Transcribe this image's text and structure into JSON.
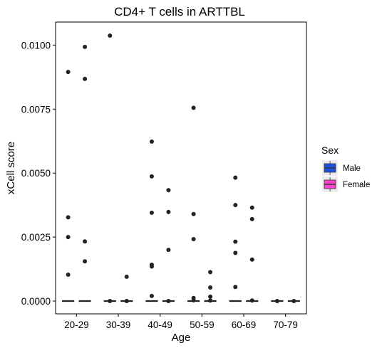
{
  "chart_data": {
    "type": "boxplot",
    "title": "CD4+ T cells in ARTTBL",
    "xlabel": "Age",
    "ylabel": "xCell score",
    "categories": [
      "20-29",
      "30-39",
      "40-49",
      "50-59",
      "60-69",
      "70-79"
    ],
    "ylim": [
      -0.0005,
      0.0109
    ],
    "yticks": [
      0.0,
      0.0025,
      0.005,
      0.0075,
      0.01
    ],
    "ytick_labels": [
      "0.0000",
      "0.0025",
      "0.0050",
      "0.0075",
      "0.0100"
    ],
    "grid": false,
    "legend": {
      "title": "Sex",
      "position": "right",
      "entries": [
        {
          "label": "Male",
          "color": "#1f4fe0"
        },
        {
          "label": "Female",
          "color": "#ff44cc"
        }
      ]
    },
    "series": [
      {
        "name": "Male",
        "boxes": [
          {
            "category": "20-29",
            "median": 0.0,
            "q1": 0.0,
            "q3": 0.0
          },
          {
            "category": "30-39",
            "median": 0.0,
            "q1": 0.0,
            "q3": 0.0
          },
          {
            "category": "40-49",
            "median": 0.0,
            "q1": 0.0,
            "q3": 0.0
          },
          {
            "category": "50-59",
            "median": 0.0,
            "q1": 0.0,
            "q3": 0.0
          },
          {
            "category": "60-69",
            "median": 0.0,
            "q1": 0.0,
            "q3": 0.0
          },
          {
            "category": "70-79",
            "median": 0.0,
            "q1": 0.0,
            "q3": 0.0
          }
        ],
        "points": [
          {
            "category": "20-29",
            "y": 0.00895
          },
          {
            "category": "20-29",
            "y": 0.00327
          },
          {
            "category": "20-29",
            "y": 0.0025
          },
          {
            "category": "20-29",
            "y": 0.00103
          },
          {
            "category": "30-39",
            "y": 0.01037
          },
          {
            "category": "30-39",
            "y": 0.0
          },
          {
            "category": "40-49",
            "y": 0.00623
          },
          {
            "category": "40-49",
            "y": 0.00487
          },
          {
            "category": "40-49",
            "y": 0.00345
          },
          {
            "category": "40-49",
            "y": 0.00142
          },
          {
            "category": "40-49",
            "y": 0.00135
          },
          {
            "category": "40-49",
            "y": 0.0002
          },
          {
            "category": "50-59",
            "y": 0.00755
          },
          {
            "category": "50-59",
            "y": 0.0034
          },
          {
            "category": "50-59",
            "y": 0.00242
          },
          {
            "category": "50-59",
            "y": 0.00012
          },
          {
            "category": "50-59",
            "y": 3e-05
          },
          {
            "category": "60-69",
            "y": 0.00482
          },
          {
            "category": "60-69",
            "y": 0.00375
          },
          {
            "category": "60-69",
            "y": 0.00232
          },
          {
            "category": "60-69",
            "y": 0.00188
          },
          {
            "category": "60-69",
            "y": 0.00055
          },
          {
            "category": "70-79",
            "y": 0.0
          }
        ]
      },
      {
        "name": "Female",
        "boxes": [
          {
            "category": "20-29",
            "median": 0.0,
            "q1": 0.0,
            "q3": 0.0
          },
          {
            "category": "30-39",
            "median": 0.0,
            "q1": 0.0,
            "q3": 0.0
          },
          {
            "category": "40-49",
            "median": 0.0,
            "q1": 0.0,
            "q3": 0.0
          },
          {
            "category": "50-59",
            "median": 0.0,
            "q1": 0.0,
            "q3": 0.0
          },
          {
            "category": "60-69",
            "median": 0.0,
            "q1": 0.0,
            "q3": 0.0
          },
          {
            "category": "70-79",
            "median": 0.0,
            "q1": 0.0,
            "q3": 0.0
          }
        ],
        "points": [
          {
            "category": "20-29",
            "y": 0.00993
          },
          {
            "category": "20-29",
            "y": 0.00868
          },
          {
            "category": "20-29",
            "y": 0.00233
          },
          {
            "category": "20-29",
            "y": 0.00155
          },
          {
            "category": "30-39",
            "y": 0.00095
          },
          {
            "category": "30-39",
            "y": 0.0
          },
          {
            "category": "40-49",
            "y": 0.00433
          },
          {
            "category": "40-49",
            "y": 0.00348
          },
          {
            "category": "40-49",
            "y": 0.002
          },
          {
            "category": "40-49",
            "y": 0.0
          },
          {
            "category": "50-59",
            "y": 0.00113
          },
          {
            "category": "50-59",
            "y": 0.00053
          },
          {
            "category": "50-59",
            "y": 0.00017
          },
          {
            "category": "50-59",
            "y": 2e-05
          },
          {
            "category": "60-69",
            "y": 0.00365
          },
          {
            "category": "60-69",
            "y": 0.0032
          },
          {
            "category": "60-69",
            "y": 0.00162
          },
          {
            "category": "60-69",
            "y": 2e-05
          },
          {
            "category": "70-79",
            "y": 0.0
          }
        ]
      }
    ]
  }
}
